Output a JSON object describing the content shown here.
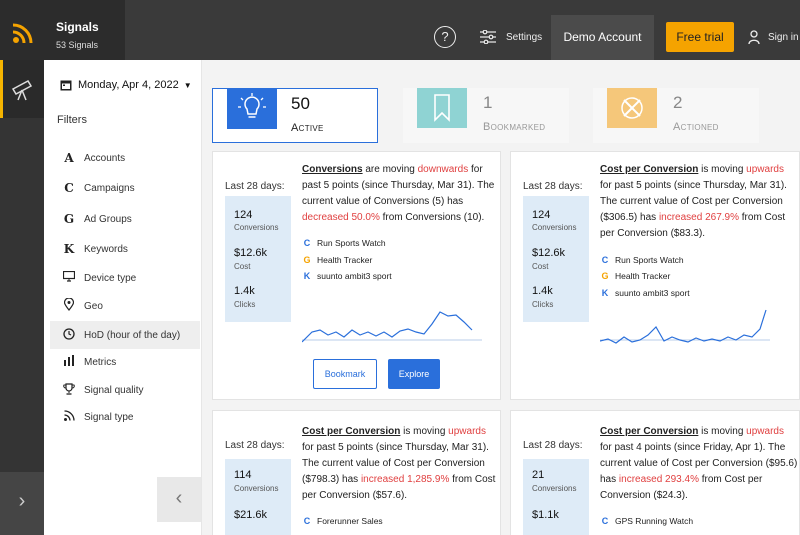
{
  "app": {
    "title": "Signals",
    "subtitle": "53 Signals"
  },
  "header": {
    "help": "?",
    "settings_label": "Settings",
    "account_label": "Demo Account",
    "trial_label": "Free trial",
    "signin_label": "Sign in"
  },
  "sidebar": {
    "date": "Monday, Apr 4, 2022",
    "filters_heading": "Filters",
    "items": [
      {
        "label": "Accounts",
        "icon": "A"
      },
      {
        "label": "Campaigns",
        "icon": "C"
      },
      {
        "label": "Ad Groups",
        "icon": "G"
      },
      {
        "label": "Keywords",
        "icon": "K"
      },
      {
        "label": "Device type",
        "icon": "device-icon"
      },
      {
        "label": "Geo",
        "icon": "location-pin-icon"
      },
      {
        "label": "HoD (hour of the day)",
        "icon": "clock-icon"
      },
      {
        "label": "Metrics",
        "icon": "bar-chart-icon"
      },
      {
        "label": "Signal quality",
        "icon": "trophy-icon"
      },
      {
        "label": "Signal type",
        "icon": "signal-icon"
      }
    ],
    "selected_item": "HoD (hour of the day)"
  },
  "stats": {
    "active": {
      "count": "50",
      "label": "Active",
      "color": "#2a6fdb"
    },
    "bookmarked": {
      "count": "1",
      "label": "Bookmarked",
      "color": "#8fd3d3"
    },
    "actioned": {
      "count": "2",
      "label": "Actioned",
      "color": "#f5c77a"
    }
  },
  "cards": [
    {
      "last28": "Last 28 days:",
      "m1_value": "124",
      "m1_unit": "Conversions",
      "m2_value": "$12.6k",
      "m2_unit": "Cost",
      "m3_value": "1.4k",
      "m3_unit": "Clicks",
      "metric": "Conversions",
      "t1": " are moving ",
      "dir": "downwards",
      "t2": " for past 5 points (since Thursday, Mar 31). The current value of Conversions (5) has ",
      "change": "decreased 50.0%",
      "t3": " from Conversions (10).",
      "campaigns": [
        {
          "icon": "C",
          "name": "Run Sports Watch"
        },
        {
          "icon": "G",
          "name": "Health Tracker"
        },
        {
          "icon": "K",
          "name": "suunto ambit3 sport"
        }
      ],
      "bookmark_label": "Bookmark",
      "explore_label": "Explore"
    },
    {
      "last28": "Last 28 days:",
      "m1_value": "124",
      "m1_unit": "Conversions",
      "m2_value": "$12.6k",
      "m2_unit": "Cost",
      "m3_value": "1.4k",
      "m3_unit": "Clicks",
      "metric": "Cost per Conversion",
      "t1": " is moving ",
      "dir": "upwards",
      "t2": " for past 5 points (since Thursday, Mar 31). The current value of Cost per Conversion ($306.5) has ",
      "change": "increased 267.9%",
      "t3": " from Cost per Conversion ($83.3).",
      "campaigns": [
        {
          "icon": "C",
          "name": "Run Sports Watch"
        },
        {
          "icon": "G",
          "name": "Health Tracker"
        },
        {
          "icon": "K",
          "name": "suunto ambit3 sport"
        }
      ]
    },
    {
      "last28": "Last 28 days:",
      "m1_value": "114",
      "m1_unit": "Conversions",
      "m2_value": "$21.6k",
      "metric": "Cost per Conversion",
      "t1": " is moving ",
      "dir": "upwards",
      "t2": " for past 5 points (since Thursday, Mar 31). The current value of Cost per Conversion ($798.3) has ",
      "change": "increased 1,285.9%",
      "t3": " from Cost per Conversion ($57.6).",
      "campaigns": [
        {
          "icon": "C",
          "name": "Forerunner Sales"
        }
      ]
    },
    {
      "last28": "Last 28 days:",
      "m1_value": "21",
      "m1_unit": "Conversions",
      "m2_value": "$1.1k",
      "metric": "Cost per Conversion",
      "t1": " is moving ",
      "dir": "upwards",
      "t2": " for past 4 points (since Friday, Apr 1). The current value of Cost per Conversion ($95.6) has ",
      "change": "increased 293.4%",
      "t3": " from Cost per Conversion ($24.3).",
      "campaigns": [
        {
          "icon": "C",
          "name": "GPS Running Watch"
        }
      ]
    }
  ],
  "colors": {
    "accent": "#2a6fdb",
    "highlight": "#f5a300",
    "negative": "#e04040",
    "metrics_bg": "#deebf7"
  }
}
